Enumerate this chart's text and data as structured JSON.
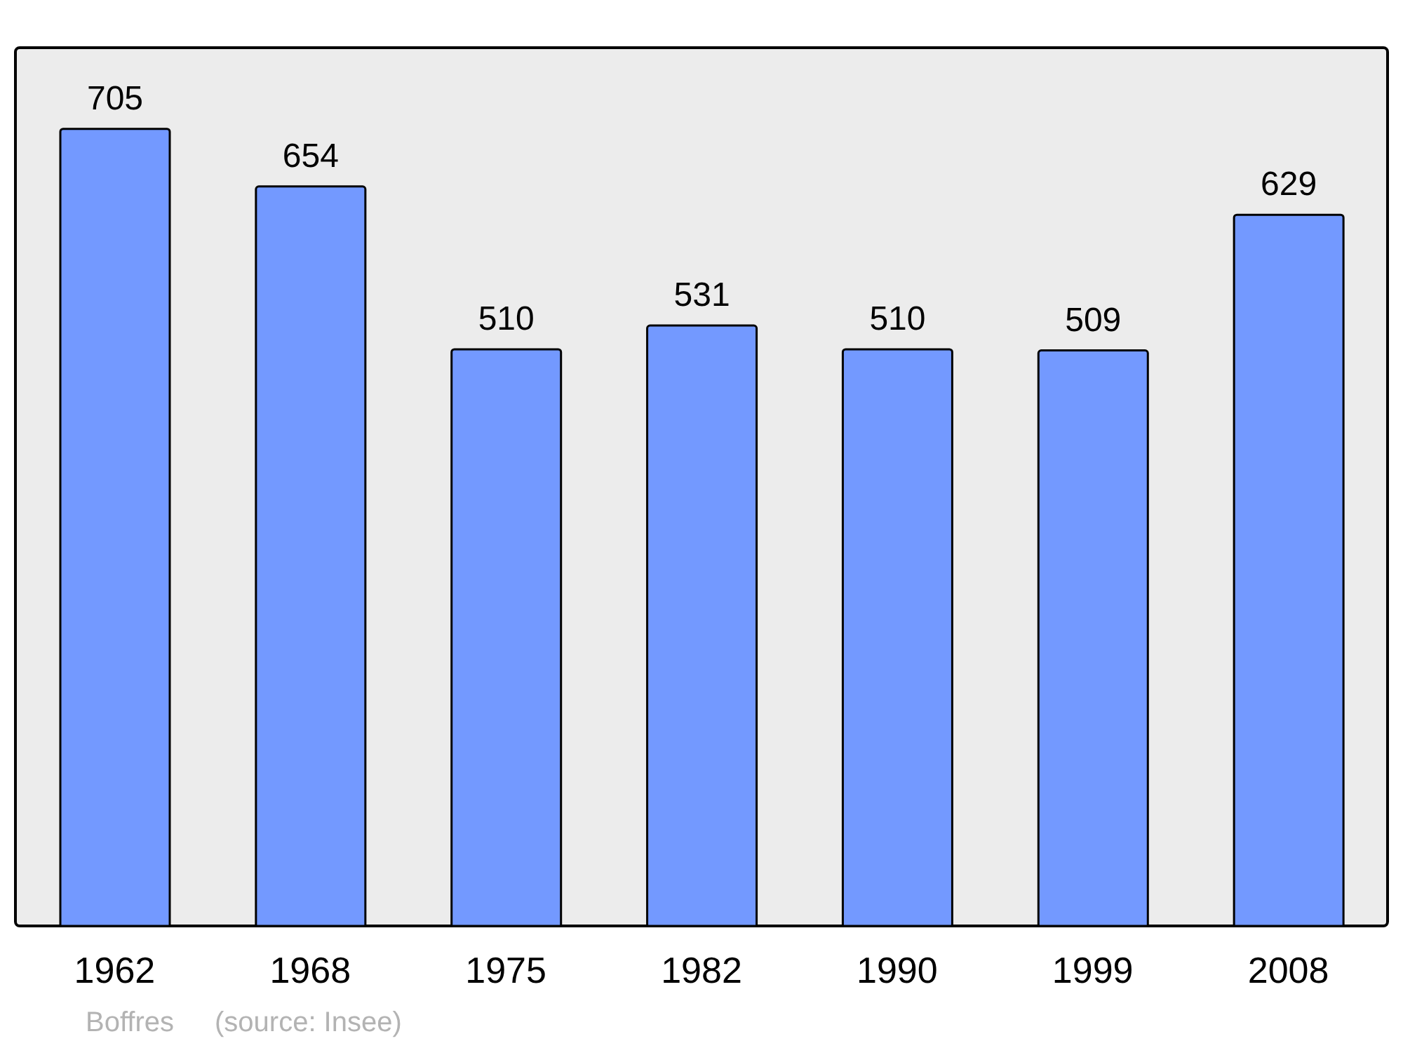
{
  "chart_data": {
    "type": "bar",
    "categories": [
      "1962",
      "1968",
      "1975",
      "1982",
      "1990",
      "1999",
      "2008"
    ],
    "values": [
      705,
      654,
      510,
      531,
      510,
      509,
      629
    ],
    "color": "#7399ff",
    "data_labels": true,
    "annotations": [
      "Boffres",
      "(source: Insee)"
    ]
  }
}
